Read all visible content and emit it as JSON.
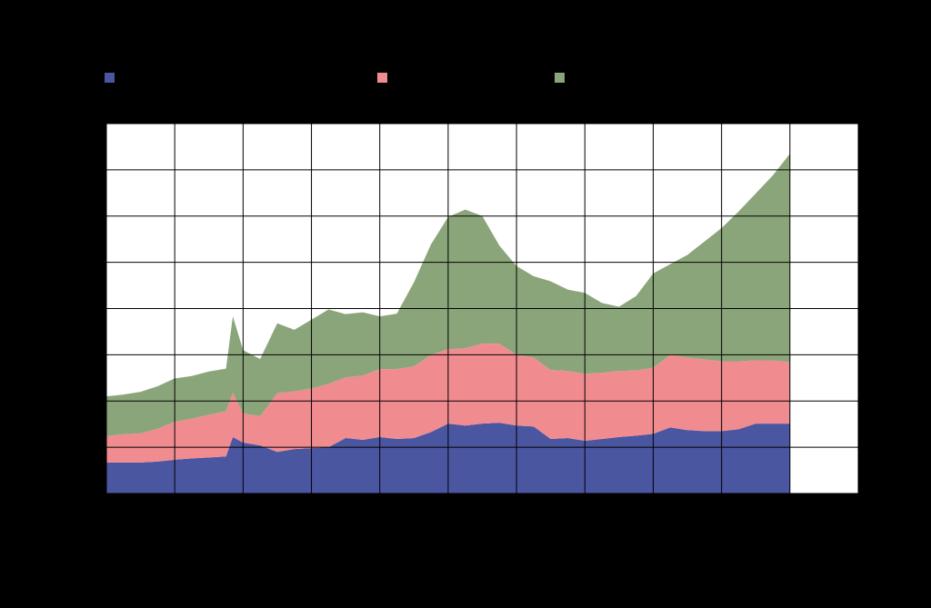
{
  "chart_data": {
    "type": "stacked_area",
    "x": [
      0,
      0.25,
      0.5,
      0.75,
      1,
      1.25,
      1.5,
      1.75,
      1.85,
      2,
      2.25,
      2.5,
      2.75,
      3,
      3.25,
      3.5,
      3.75,
      4,
      4.25,
      4.5,
      4.75,
      5,
      5.25,
      5.5,
      5.75,
      6,
      6.25,
      6.5,
      6.75,
      7,
      7.25,
      7.5,
      7.75,
      8,
      8.25,
      8.5,
      8.75,
      9,
      9.25,
      9.5,
      9.75,
      10
    ],
    "series": [
      {
        "color": "#4b56a0",
        "values": [
          0.67,
          0.67,
          0.67,
          0.69,
          0.73,
          0.76,
          0.78,
          0.8,
          1.22,
          1.1,
          1.04,
          0.9,
          0.96,
          0.98,
          1.0,
          1.2,
          1.16,
          1.22,
          1.18,
          1.2,
          1.33,
          1.51,
          1.47,
          1.51,
          1.53,
          1.47,
          1.45,
          1.18,
          1.2,
          1.14,
          1.18,
          1.22,
          1.25,
          1.29,
          1.43,
          1.37,
          1.35,
          1.35,
          1.39,
          1.51,
          1.51,
          1.51
        ]
      },
      {
        "color": "#f08c90",
        "values": [
          0.57,
          0.61,
          0.63,
          0.71,
          0.82,
          0.86,
          0.92,
          0.98,
          0.96,
          0.63,
          0.63,
          1.27,
          1.25,
          1.29,
          1.37,
          1.31,
          1.39,
          1.47,
          1.51,
          1.55,
          1.67,
          1.61,
          1.67,
          1.73,
          1.71,
          1.53,
          1.49,
          1.49,
          1.45,
          1.45,
          1.43,
          1.43,
          1.41,
          1.43,
          1.57,
          1.57,
          1.55,
          1.51,
          1.47,
          1.37,
          1.37,
          1.33
        ]
      },
      {
        "color": "#8ba57a",
        "values": [
          0.86,
          0.86,
          0.9,
          0.92,
          0.94,
          0.92,
          0.94,
          0.92,
          1.65,
          1.37,
          1.24,
          1.51,
          1.33,
          1.49,
          1.61,
          1.37,
          1.37,
          1.14,
          1.2,
          1.82,
          2.39,
          2.86,
          3.0,
          2.76,
          2.12,
          1.92,
          1.76,
          1.92,
          1.76,
          1.75,
          1.51,
          1.39,
          1.61,
          2.04,
          1.96,
          2.22,
          2.55,
          2.88,
          3.24,
          3.61,
          4.0,
          4.51
        ]
      }
    ],
    "xlim": [
      0,
      11
    ],
    "xticks": [
      0,
      1,
      2,
      3,
      4,
      5,
      6,
      7,
      8,
      9,
      10,
      11
    ],
    "ylim": [
      0,
      8
    ],
    "yticks": [
      0,
      1,
      2,
      3,
      4,
      5,
      6,
      7,
      8
    ],
    "grid": true
  }
}
